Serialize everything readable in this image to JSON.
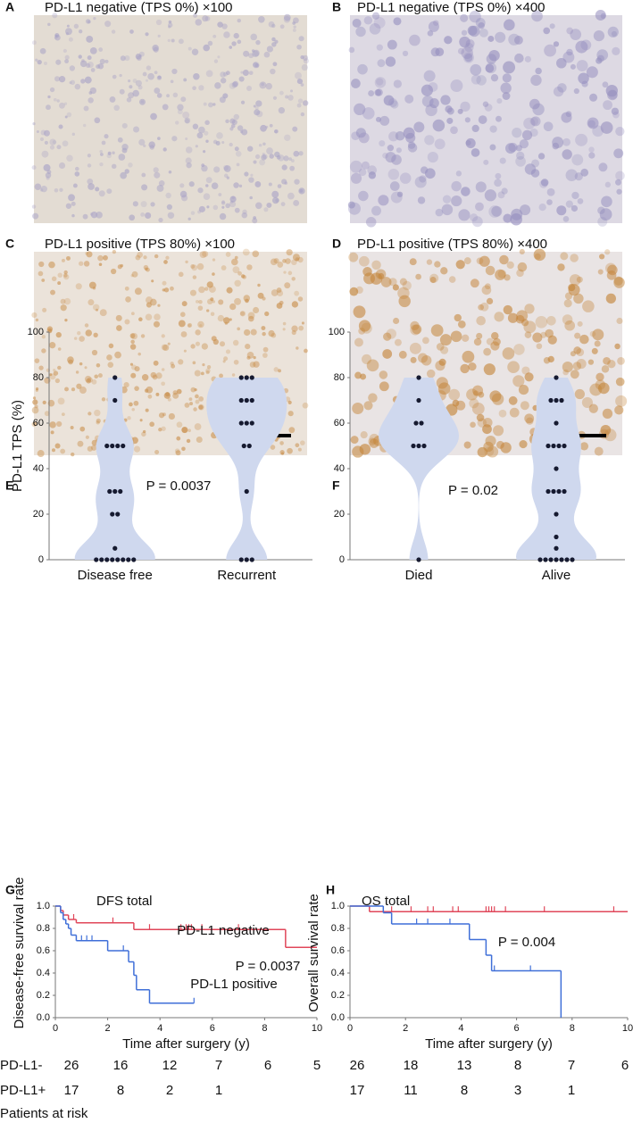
{
  "image_panels": [
    {
      "letter": "A",
      "title": "PD-L1 negative (TPS 0%) ×100"
    },
    {
      "letter": "B",
      "title": "PD-L1 negative (TPS 0%) ×400"
    },
    {
      "letter": "C",
      "title": "PD-L1 positive (TPS 80%) ×100"
    },
    {
      "letter": "D",
      "title": "PD-L1 positive (TPS 80%) ×400"
    }
  ],
  "chart_data": [
    {
      "type": "violin",
      "letter": "E",
      "title": "P = 0.0037",
      "y_label": "PD-L1 TPS (%)",
      "categories": [
        "Disease free",
        "Recurrent"
      ],
      "values": [
        [
          80,
          70,
          50,
          50,
          50,
          50,
          30,
          30,
          30,
          20,
          20,
          5,
          0,
          0,
          0,
          0,
          0,
          0,
          0,
          0
        ],
        [
          80,
          80,
          80,
          70,
          70,
          70,
          60,
          60,
          60,
          50,
          50,
          30,
          0,
          0,
          0
        ]
      ],
      "color": "#cfd8ee",
      "point_color": "#161a30",
      "ylim": [
        0,
        100
      ],
      "yticks": [
        0,
        20,
        40,
        60,
        80,
        100
      ]
    },
    {
      "type": "violin",
      "letter": "F",
      "title": "P = 0.02",
      "categories": [
        "Died",
        "Alive"
      ],
      "values": [
        [
          80,
          70,
          60,
          60,
          50,
          50,
          50,
          0
        ],
        [
          80,
          70,
          70,
          70,
          60,
          50,
          50,
          50,
          50,
          40,
          30,
          30,
          30,
          30,
          20,
          10,
          5,
          0,
          0,
          0,
          0,
          0,
          0,
          0
        ]
      ],
      "color": "#cfd8ee",
      "point_color": "#161a30",
      "ylim": [
        0,
        100
      ],
      "yticks": [
        0,
        20,
        40,
        60,
        80,
        100
      ]
    },
    {
      "type": "step",
      "letter": "G",
      "title": "DFS total",
      "x_label": "Time after surgery (y)",
      "y_label": "Disease-free survival rate",
      "annotation": "P = 0.0037",
      "xlim": [
        0,
        10
      ],
      "xticks": [
        0,
        2,
        4,
        6,
        8,
        10
      ],
      "ylim": [
        0,
        1
      ],
      "yticks": [
        {
          "value": 0,
          "label": "0.0"
        },
        0.2,
        0.4,
        0.6,
        0.8,
        {
          "value": 1,
          "label": "1.0"
        }
      ],
      "series": [
        {
          "name": "PD-L1 negative",
          "color": "#e0475a",
          "x": [
            0,
            0.2,
            0.3,
            0.5,
            0.8,
            3.0,
            8.8,
            10
          ],
          "values": [
            1.0,
            0.96,
            0.92,
            0.88,
            0.85,
            0.79,
            0.63,
            0.63
          ],
          "censored": [
            0.7,
            2.2,
            3.6,
            4.8,
            5.0,
            5.1,
            5.2,
            5.6,
            7.0
          ]
        },
        {
          "name": "PD-L1 positive",
          "color": "#3f6fd8",
          "x": [
            0,
            0.2,
            0.3,
            0.4,
            0.5,
            0.6,
            0.8,
            2.0,
            2.8,
            3.0,
            3.1,
            3.6,
            5.3
          ],
          "values": [
            1.0,
            0.94,
            0.88,
            0.84,
            0.8,
            0.74,
            0.69,
            0.6,
            0.5,
            0.38,
            0.25,
            0.13,
            0.13
          ],
          "censored": [
            1.0,
            1.2,
            1.4,
            2.6,
            5.3
          ]
        }
      ],
      "risk_table": {
        "title": "Patients at risk",
        "rows": [
          {
            "label": "PD-L1-",
            "values": [
              26,
              16,
              12,
              7,
              6,
              5
            ]
          },
          {
            "label": "PD-L1+",
            "values": [
              17,
              8,
              2,
              1
            ]
          }
        ]
      }
    },
    {
      "type": "step",
      "letter": "H",
      "title": "OS total",
      "x_label": "Time after surgery (y)",
      "y_label": "Overall survival rate",
      "annotation": "P = 0.004",
      "xlim": [
        0,
        10
      ],
      "xticks": [
        0,
        2,
        4,
        6,
        8,
        10
      ],
      "ylim": [
        0,
        1
      ],
      "yticks": [
        {
          "value": 0,
          "label": "0.0"
        },
        0.2,
        0.4,
        0.6,
        0.8,
        {
          "value": 1,
          "label": "1.0"
        }
      ],
      "series": [
        {
          "color": "#e0475a",
          "x": [
            0,
            0.7,
            10
          ],
          "values": [
            1.0,
            0.95,
            0.95
          ],
          "censored": [
            1.5,
            2.2,
            2.8,
            3.0,
            3.7,
            3.9,
            4.9,
            5.0,
            5.1,
            5.2,
            5.6,
            7.0,
            9.5
          ]
        },
        {
          "color": "#3f6fd8",
          "x": [
            0,
            1.2,
            1.5,
            4.3,
            4.9,
            5.1,
            7.6
          ],
          "values": [
            1.0,
            0.94,
            0.84,
            0.7,
            0.56,
            0.42,
            0
          ],
          "censored": [
            2.4,
            2.8,
            3.6,
            5.2,
            6.5
          ]
        }
      ],
      "risk_table": {
        "rows": [
          {
            "values": [
              26,
              18,
              13,
              8,
              7,
              6
            ]
          },
          {
            "values": [
              17,
              11,
              8,
              3,
              1
            ]
          }
        ]
      }
    }
  ]
}
